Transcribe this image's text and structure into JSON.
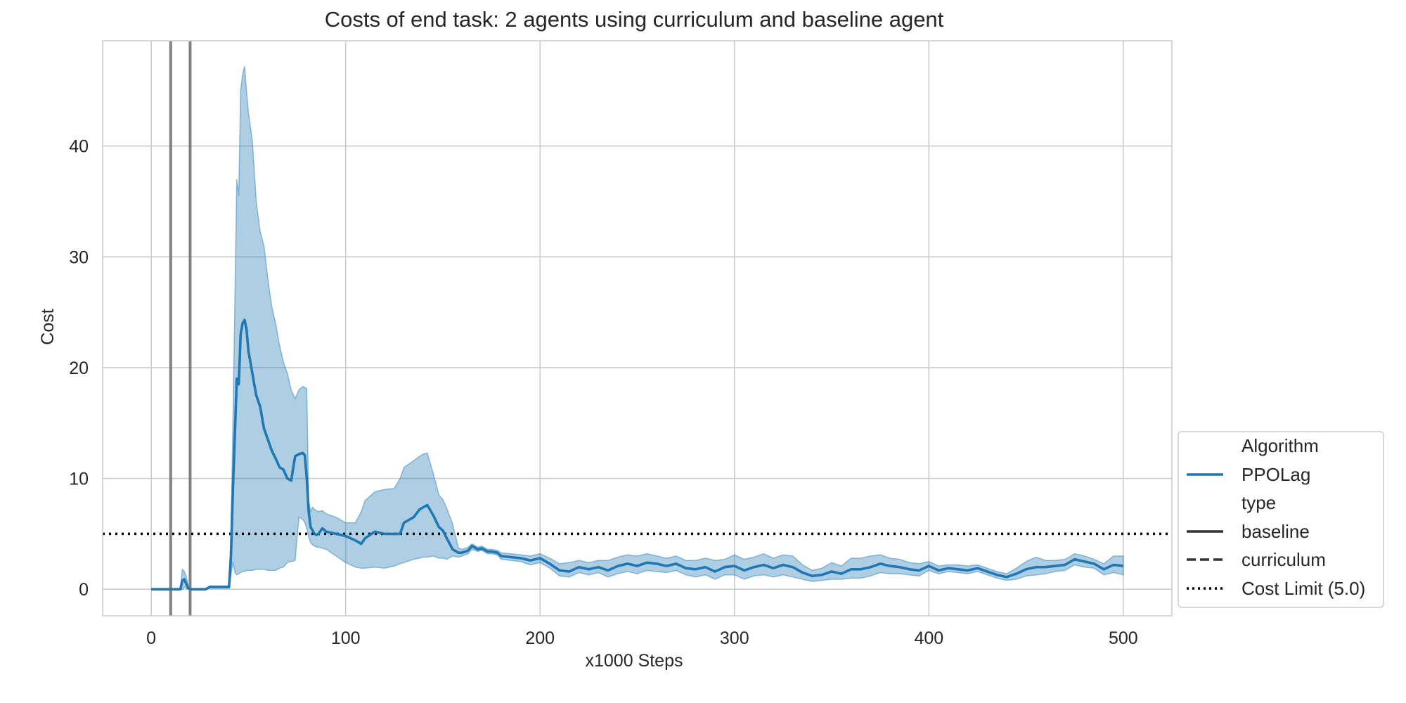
{
  "chart_data": {
    "type": "line",
    "title": "Costs of end task: 2 agents using curriculum and baseline agent",
    "xlabel": "x1000 Steps",
    "ylabel": "Cost",
    "xlim": [
      -25,
      525
    ],
    "ylim": [
      -2.4,
      49.5
    ],
    "xticks": [
      0,
      100,
      200,
      300,
      400,
      500
    ],
    "yticks": [
      0,
      10,
      20,
      30,
      40
    ],
    "grid": true,
    "legend_position": "lower-right outside",
    "colors": {
      "series": "#1f77b4",
      "band": "#1f77b4",
      "vline": "#808080",
      "cost_limit": "#000000",
      "grid": "#cccccc",
      "style_key": "#333333"
    },
    "vertical_lines": [
      10,
      20
    ],
    "cost_limit": 5.0,
    "legend": {
      "header_algorithm": "Algorithm",
      "algorithm_item": "PPOLag",
      "header_type": "type",
      "type_items": [
        "baseline",
        "curriculum"
      ],
      "cost_limit_item": "Cost Limit (5.0)"
    },
    "series": [
      {
        "name": "PPOLag",
        "x": [
          0,
          10,
          15,
          16,
          17,
          18,
          19,
          20,
          25,
          28,
          30,
          35,
          40,
          41,
          42,
          43,
          44,
          45,
          46,
          47,
          48,
          49,
          50,
          52,
          54,
          56,
          58,
          60,
          62,
          64,
          66,
          68,
          70,
          72,
          74,
          76,
          78,
          79,
          80,
          81,
          82,
          83,
          84,
          85,
          86,
          88,
          90,
          95,
          100,
          105,
          108,
          110,
          115,
          120,
          125,
          128,
          130,
          135,
          138,
          140,
          142,
          145,
          148,
          150,
          152,
          155,
          158,
          160,
          163,
          165,
          168,
          170,
          173,
          175,
          178,
          180,
          185,
          190,
          195,
          200,
          205,
          210,
          215,
          220,
          225,
          230,
          235,
          240,
          245,
          250,
          255,
          260,
          265,
          270,
          275,
          280,
          285,
          290,
          295,
          300,
          305,
          310,
          315,
          320,
          325,
          330,
          335,
          340,
          345,
          350,
          355,
          360,
          365,
          370,
          375,
          380,
          385,
          390,
          395,
          400,
          405,
          410,
          415,
          420,
          425,
          430,
          435,
          440,
          445,
          450,
          455,
          460,
          465,
          470,
          475,
          480,
          485,
          490,
          495,
          500
        ],
        "mean": [
          0,
          0,
          0,
          0.8,
          0.9,
          0.5,
          0.1,
          0,
          0,
          0,
          0.2,
          0.2,
          0.2,
          3.0,
          9.0,
          14.0,
          19.0,
          18.5,
          23.0,
          24.0,
          24.3,
          23.5,
          21.5,
          19.5,
          17.5,
          16.5,
          14.5,
          13.5,
          12.5,
          11.8,
          11.0,
          10.8,
          10.0,
          9.8,
          12.0,
          12.2,
          12.3,
          12.1,
          10.0,
          7.0,
          5.6,
          5.3,
          5.0,
          4.9,
          5.0,
          5.5,
          5.2,
          5.0,
          4.8,
          4.4,
          4.1,
          4.6,
          5.2,
          5.0,
          5.0,
          5.0,
          6.0,
          6.5,
          7.2,
          7.4,
          7.6,
          6.7,
          5.6,
          5.3,
          4.6,
          3.6,
          3.3,
          3.3,
          3.5,
          3.9,
          3.6,
          3.7,
          3.4,
          3.4,
          3.3,
          3.0,
          2.9,
          2.8,
          2.6,
          2.8,
          2.3,
          1.7,
          1.6,
          2.0,
          1.8,
          2.0,
          1.7,
          2.1,
          2.3,
          2.1,
          2.4,
          2.3,
          2.1,
          2.3,
          1.9,
          1.8,
          2.0,
          1.6,
          2.0,
          2.1,
          1.7,
          2.0,
          2.2,
          1.9,
          2.2,
          2.0,
          1.5,
          1.2,
          1.3,
          1.6,
          1.4,
          1.8,
          1.8,
          2.0,
          2.3,
          2.1,
          2.0,
          1.8,
          1.7,
          2.1,
          1.7,
          1.9,
          1.8,
          1.7,
          1.9,
          1.6,
          1.3,
          1.1,
          1.4,
          1.8,
          2.0,
          2.0,
          2.1,
          2.2,
          2.7,
          2.5,
          2.3,
          1.8,
          2.2,
          2.1
        ],
        "upper": [
          0,
          0,
          0,
          1.8,
          1.6,
          1.2,
          0.3,
          0,
          0,
          0,
          0.3,
          0.3,
          0.3,
          5.0,
          15.0,
          26.0,
          37.0,
          35.5,
          45.0,
          46.5,
          47.2,
          45.0,
          43.0,
          40.5,
          35.0,
          32.3,
          31.0,
          28.0,
          25.5,
          24.0,
          22.0,
          20.5,
          19.5,
          18.0,
          17.2,
          18.0,
          18.3,
          18.2,
          18.1,
          8.0,
          7.0,
          7.4,
          7.2,
          7.1,
          7.0,
          7.1,
          6.8,
          6.5,
          6.0,
          6.0,
          7.0,
          8.0,
          8.8,
          9.0,
          9.1,
          10.0,
          11.0,
          11.6,
          12.0,
          12.2,
          12.3,
          10.5,
          8.5,
          8.1,
          7.3,
          5.9,
          3.7,
          3.6,
          3.8,
          4.1,
          3.8,
          3.9,
          3.6,
          3.6,
          3.5,
          3.3,
          3.2,
          3.1,
          3.0,
          3.2,
          2.8,
          2.3,
          2.4,
          2.6,
          2.4,
          2.6,
          2.6,
          2.9,
          3.1,
          3.0,
          3.2,
          3.0,
          2.8,
          3.0,
          2.6,
          2.6,
          2.8,
          2.6,
          2.7,
          3.1,
          2.7,
          2.9,
          3.2,
          2.8,
          3.1,
          3.0,
          2.2,
          1.7,
          1.9,
          2.4,
          2.1,
          2.8,
          2.8,
          3.0,
          3.1,
          2.8,
          2.7,
          2.4,
          2.3,
          2.5,
          2.1,
          2.2,
          2.2,
          2.1,
          2.2,
          1.9,
          1.6,
          1.4,
          1.9,
          2.5,
          2.9,
          2.6,
          2.6,
          2.7,
          3.2,
          3.0,
          2.7,
          2.3,
          3.0,
          3.0
        ],
        "lower": [
          0,
          0,
          0,
          0,
          0.2,
          0.1,
          0,
          0,
          0,
          0,
          0.1,
          0.1,
          0.1,
          1.2,
          2.5,
          1.5,
          1.3,
          1.4,
          1.5,
          1.6,
          1.6,
          1.7,
          1.7,
          1.7,
          1.8,
          1.8,
          1.8,
          1.7,
          1.7,
          1.7,
          1.9,
          2.0,
          2.4,
          2.5,
          2.6,
          6.5,
          6.3,
          6.0,
          5.5,
          4.7,
          4.2,
          4.0,
          3.9,
          3.8,
          3.8,
          3.7,
          3.6,
          3.0,
          2.4,
          2.0,
          1.9,
          1.9,
          2.0,
          1.9,
          2.1,
          2.3,
          2.4,
          2.7,
          2.8,
          2.9,
          2.9,
          3.0,
          2.8,
          2.8,
          2.7,
          3.0,
          2.9,
          3.0,
          3.2,
          3.6,
          3.4,
          3.5,
          3.2,
          3.2,
          3.1,
          2.7,
          2.6,
          2.5,
          2.2,
          2.4,
          1.9,
          1.2,
          1.1,
          1.5,
          1.3,
          1.5,
          1.1,
          1.4,
          1.6,
          1.4,
          1.7,
          1.6,
          1.5,
          1.7,
          1.3,
          1.1,
          1.3,
          0.9,
          1.3,
          1.3,
          0.9,
          1.2,
          1.3,
          1.1,
          1.3,
          1.1,
          0.9,
          0.7,
          0.8,
          0.9,
          0.9,
          1.0,
          1.0,
          1.2,
          1.5,
          1.4,
          1.4,
          1.3,
          1.2,
          1.7,
          1.4,
          1.6,
          1.5,
          1.4,
          1.6,
          1.3,
          1.0,
          0.8,
          0.9,
          1.2,
          1.3,
          1.4,
          1.6,
          1.7,
          2.2,
          2.0,
          1.9,
          1.3,
          1.5,
          1.3
        ]
      }
    ]
  }
}
